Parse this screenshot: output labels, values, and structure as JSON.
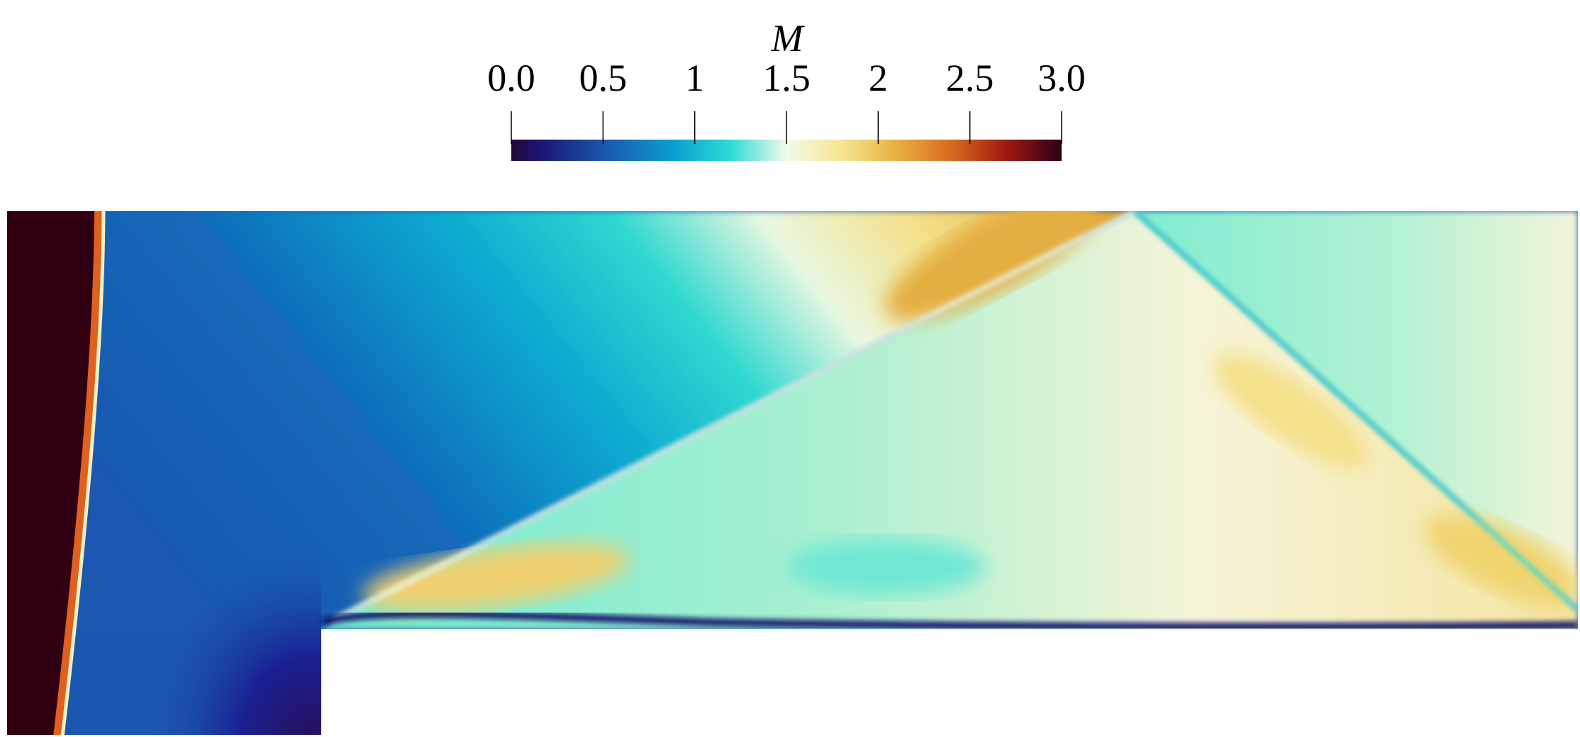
{
  "colorbar": {
    "title": "M",
    "range": [
      0,
      3
    ],
    "ticks": [
      {
        "value": 0,
        "label": "0.0"
      },
      0.5,
      1,
      1.5,
      2,
      2.5,
      {
        "value": 3,
        "label": "3.0"
      }
    ]
  }
}
